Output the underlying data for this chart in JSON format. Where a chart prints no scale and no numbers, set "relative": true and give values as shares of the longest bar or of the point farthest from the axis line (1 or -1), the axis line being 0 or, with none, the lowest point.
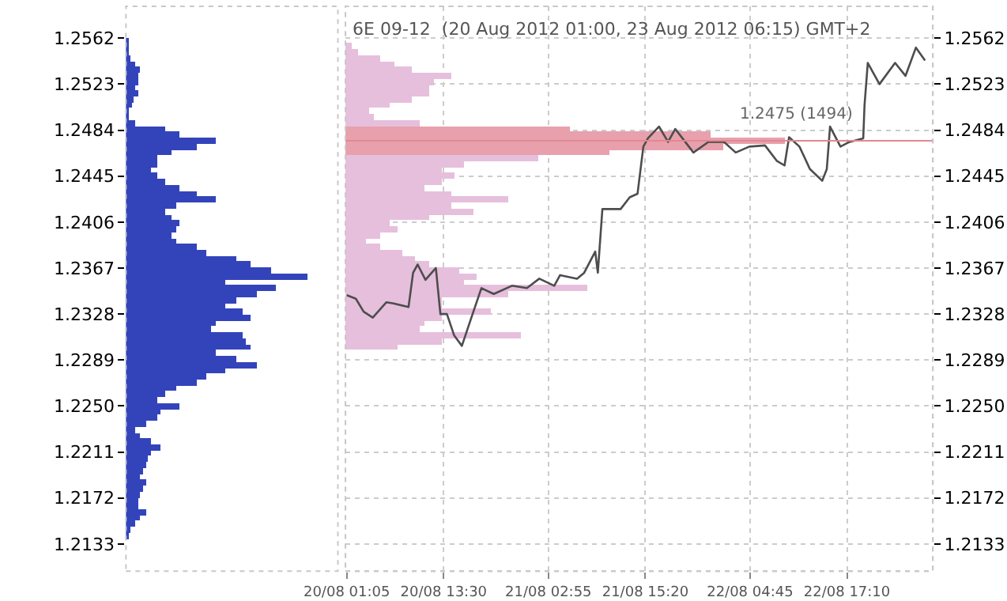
{
  "chart_data": [
    {
      "type": "bar",
      "orientation": "horizontal",
      "relative": true,
      "color": "#3344bb",
      "tick_labels": "y",
      "grid": false,
      "x": [
        1.256,
        1.2555,
        1.255,
        1.2545,
        1.254,
        1.2535,
        1.253,
        1.2525,
        1.252,
        1.2515,
        1.251,
        1.2505,
        1.25,
        1.2495,
        1.249,
        1.2485,
        1.248,
        1.2475,
        1.247,
        1.2465,
        1.246,
        1.2455,
        1.245,
        1.2445,
        1.244,
        1.2435,
        1.243,
        1.2425,
        1.242,
        1.2415,
        1.241,
        1.2405,
        1.24,
        1.2395,
        1.239,
        1.2385,
        1.238,
        1.2375,
        1.237,
        1.2365,
        1.236,
        1.2355,
        1.235,
        1.2345,
        1.234,
        1.2335,
        1.233,
        1.2325,
        1.232,
        1.2315,
        1.231,
        1.2305,
        1.23,
        1.2295,
        1.229,
        1.2285,
        1.228,
        1.2275,
        1.227,
        1.2265,
        1.226,
        1.2255,
        1.225,
        1.2245,
        1.224,
        1.2235,
        1.223,
        1.2225,
        1.222,
        1.2215,
        1.221,
        1.2205,
        1.22,
        1.2195,
        1.219,
        1.2185,
        1.218,
        1.2175,
        1.217,
        1.2165,
        1.216,
        1.2155,
        1.215,
        1.2145,
        1.214
      ],
      "values": [
        0.01,
        0.015,
        0.02,
        0.03,
        0.055,
        0.08,
        0.07,
        0.07,
        0.055,
        0.07,
        0.04,
        0.035,
        0.02,
        0.015,
        0.055,
        0.22,
        0.3,
        0.5,
        0.39,
        0.25,
        0.17,
        0.17,
        0.14,
        0.17,
        0.22,
        0.3,
        0.39,
        0.5,
        0.28,
        0.22,
        0.25,
        0.3,
        0.28,
        0.25,
        0.28,
        0.39,
        0.44,
        0.61,
        0.69,
        0.8,
        1.0,
        0.55,
        0.83,
        0.72,
        0.61,
        0.55,
        0.64,
        0.69,
        0.5,
        0.47,
        0.64,
        0.66,
        0.69,
        0.5,
        0.61,
        0.72,
        0.55,
        0.44,
        0.39,
        0.28,
        0.22,
        0.17,
        0.3,
        0.19,
        0.17,
        0.11,
        0.055,
        0.08,
        0.14,
        0.19,
        0.14,
        0.12,
        0.11,
        0.1,
        0.08,
        0.11,
        0.1,
        0.08,
        0.07,
        0.07,
        0.11,
        0.08,
        0.055,
        0.03,
        0.015
      ],
      "ylim": [
        1.211,
        1.2589
      ],
      "yticks": [
        1.2133,
        1.2172,
        1.2211,
        {
          "value": 1.225,
          "label": "1.2250"
        },
        1.2289,
        1.2328,
        1.2367,
        1.2406,
        1.2445,
        1.2484,
        1.2523,
        1.2562
      ]
    },
    {
      "type": "line",
      "title": "6E 09-12  (20 Aug 2012 01:00, 23 Aug 2012 06:15) GMT+2",
      "grid": true,
      "marker": "none",
      "line_style": "solid",
      "series": [
        {
          "type": "line",
          "color": "#4d4d4d",
          "x": [
            "2012-08-20T01:05",
            "2012-08-20T02:15",
            "2012-08-20T03:15",
            "2012-08-20T04:25",
            "2012-08-20T06:10",
            "2012-08-20T07:05",
            "2012-08-20T09:00",
            "2012-08-20T09:35",
            "2012-08-20T10:10",
            "2012-08-20T11:10",
            "2012-08-20T12:30",
            "2012-08-20T13:05",
            "2012-08-20T13:55",
            "2012-08-20T14:50",
            "2012-08-20T15:50",
            "2012-08-20T17:00",
            "2012-08-20T18:20",
            "2012-08-20T19:55",
            "2012-08-20T22:15",
            "2012-08-21T00:10",
            "2012-08-21T01:45",
            "2012-08-21T03:40",
            "2012-08-21T04:25",
            "2012-08-21T06:35",
            "2012-08-21T07:30",
            "2012-08-21T08:55",
            "2012-08-21T09:15",
            "2012-08-21T09:50",
            "2012-08-21T12:10",
            "2012-08-21T13:20",
            "2012-08-21T14:20",
            "2012-08-21T15:05",
            "2012-08-21T15:40",
            "2012-08-21T17:05",
            "2012-08-21T18:15",
            "2012-08-21T19:10",
            "2012-08-21T21:30",
            "2012-08-21T23:25",
            "2012-08-22T01:25",
            "2012-08-22T02:55",
            "2012-08-22T04:40",
            "2012-08-22T06:40",
            "2012-08-22T08:10",
            "2012-08-22T09:10",
            "2012-08-22T09:45",
            "2012-08-22T11:05",
            "2012-08-22T12:25",
            "2012-08-22T14:00",
            "2012-08-22T14:35",
            "2012-08-22T15:00",
            "2012-08-22T16:20",
            "2012-08-22T17:30",
            "2012-08-22T19:15",
            "2012-08-22T19:25",
            "2012-08-22T19:50",
            "2012-08-22T21:20",
            "2012-08-22T23:20",
            "2012-08-23T00:40",
            "2012-08-23T02:00",
            "2012-08-23T03:10"
          ],
          "values": [
            1.2344,
            1.2341,
            1.233,
            1.2325,
            1.2338,
            1.2337,
            1.2334,
            1.2363,
            1.237,
            1.2357,
            1.2367,
            1.2328,
            1.2328,
            1.231,
            1.2301,
            1.2324,
            1.235,
            1.2345,
            1.2352,
            1.235,
            1.2358,
            1.2352,
            1.2361,
            1.2358,
            1.2363,
            1.2381,
            1.2363,
            1.2417,
            1.2417,
            1.2427,
            1.243,
            1.247,
            1.2477,
            1.2487,
            1.2474,
            1.2485,
            1.2465,
            1.2474,
            1.2474,
            1.2465,
            1.247,
            1.2471,
            1.2458,
            1.2454,
            1.2478,
            1.247,
            1.2451,
            1.2441,
            1.2451,
            1.2487,
            1.247,
            1.2474,
            1.2477,
            1.2505,
            1.2541,
            1.2523,
            1.2541,
            1.253,
            1.2554,
            1.2543
          ]
        }
      ],
      "xlim": [
        "2012-08-20T00:55",
        "2012-08-23T04:10"
      ],
      "xticks": [
        {
          "value": "2012-08-20T01:05",
          "label": "20/08 01:05"
        },
        {
          "value": "2012-08-20T13:30",
          "label": "20/08 13:30"
        },
        {
          "value": "2012-08-21T02:55",
          "label": "21/08 02:55"
        },
        {
          "value": "2012-08-21T15:20",
          "label": "21/08 15:20"
        },
        {
          "value": "2012-08-22T04:45",
          "label": "22/08 04:45"
        },
        {
          "value": "2012-08-22T17:10",
          "label": "22/08 17:10"
        }
      ],
      "ylim": [
        1.211,
        1.2589
      ],
      "yticks": [
        1.2133,
        1.2172,
        1.2211,
        {
          "value": 1.225,
          "label": "1.2250"
        },
        1.2289,
        1.2328,
        1.2367,
        1.2406,
        1.2445,
        1.2484,
        1.2523,
        1.2562
      ],
      "ref_lines": [
        {
          "axis": "y",
          "value": 1.2475,
          "label": "1.2475 (1494)",
          "color": "#e08890"
        }
      ]
    },
    {
      "type": "bar",
      "orientation": "horizontal",
      "relative": true,
      "tick_labels": false,
      "x": [
        1.2555,
        1.255,
        1.2545,
        1.254,
        1.2535,
        1.253,
        1.2525,
        1.252,
        1.2515,
        1.251,
        1.2505,
        1.25,
        1.2495,
        1.249,
        1.2485,
        1.248,
        1.2475,
        1.247,
        1.2465,
        1.246,
        1.2455,
        1.245,
        1.2445,
        1.244,
        1.2435,
        1.243,
        1.2425,
        1.242,
        1.2415,
        1.241,
        1.2405,
        1.24,
        1.2395,
        1.239,
        1.2385,
        1.238,
        1.2375,
        1.237,
        1.2365,
        1.236,
        1.2355,
        1.235,
        1.2345,
        1.234,
        1.2335,
        1.233,
        1.2325,
        1.232,
        1.2315,
        1.231,
        1.2305,
        1.23
      ],
      "values": [
        0.015,
        0.03,
        0.08,
        0.11,
        0.15,
        0.24,
        0.2,
        0.19,
        0.19,
        0.15,
        0.1,
        0.055,
        0.065,
        0.17,
        0.51,
        0.83,
        1.0,
        0.86,
        0.6,
        0.44,
        0.27,
        0.22,
        0.25,
        0.22,
        0.18,
        0.24,
        0.37,
        0.24,
        0.29,
        0.19,
        0.1,
        0.12,
        0.08,
        0.045,
        0.08,
        0.13,
        0.16,
        0.19,
        0.26,
        0.3,
        0.27,
        0.55,
        0.37,
        0.22,
        0.22,
        0.33,
        0.22,
        0.18,
        0.17,
        0.4,
        0.22,
        0.12
      ],
      "colors": [
        "#e6bfdc",
        "#e6bfdc",
        "#e6bfdc",
        "#e6bfdc",
        "#e6bfdc",
        "#e6bfdc",
        "#e6bfdc",
        "#e6bfdc",
        "#e6bfdc",
        "#e6bfdc",
        "#e6bfdc",
        "#e6bfdc",
        "#e6bfdc",
        "#e6bfdc",
        "#e8a0ac",
        "#e8a0ac",
        "#e8a0ac",
        "#e8a0ac",
        "#e8a0ac",
        "#e6bfdc",
        "#e6bfdc",
        "#e6bfdc",
        "#e6bfdc",
        "#e6bfdc",
        "#e6bfdc",
        "#e6bfdc",
        "#e6bfdc",
        "#e6bfdc",
        "#e6bfdc",
        "#e6bfdc",
        "#e6bfdc",
        "#e6bfdc",
        "#e6bfdc",
        "#e6bfdc",
        "#e6bfdc",
        "#e6bfdc",
        "#e6bfdc",
        "#e6bfdc",
        "#e6bfdc",
        "#e6bfdc",
        "#e6bfdc",
        "#e6bfdc",
        "#e6bfdc",
        "#e6bfdc",
        "#e6bfdc",
        "#e6bfdc",
        "#e6bfdc",
        "#e6bfdc",
        "#e6bfdc",
        "#e6bfdc",
        "#e6bfdc",
        "#e6bfdc"
      ],
      "ylim": [
        1.211,
        1.2589
      ]
    }
  ]
}
